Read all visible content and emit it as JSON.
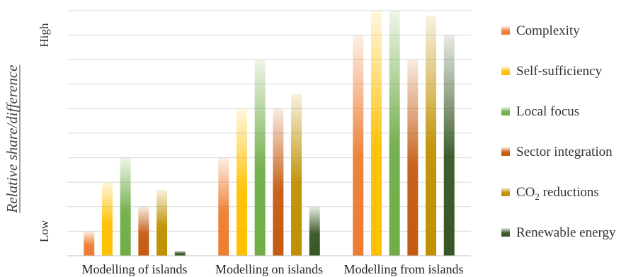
{
  "chart_data": {
    "type": "bar",
    "ylabel": "Relative share/difference",
    "ylim": [
      0,
      10
    ],
    "y_ticks": [
      {
        "value": 1,
        "label": "Low"
      },
      {
        "value": 9,
        "label": "High"
      }
    ],
    "grid": true,
    "legend_position": "right",
    "categories": [
      "Modelling of islands",
      "Modelling on islands",
      "Modelling from islands"
    ],
    "series": [
      {
        "name": "Complexity",
        "color": "#ED7D31",
        "values": [
          1.0,
          4.0,
          9.0
        ]
      },
      {
        "name": "Self-sufficiency",
        "color": "#FFC000",
        "values": [
          3.0,
          6.0,
          10.0
        ]
      },
      {
        "name": "Local focus",
        "color": "#70AD47",
        "values": [
          4.0,
          8.0,
          10.0
        ]
      },
      {
        "name": "Sector integration",
        "color": "#C55A11",
        "values": [
          2.0,
          6.0,
          8.0
        ]
      },
      {
        "name": "CO2 reductions",
        "color": "#BF9000",
        "name_base": "CO",
        "name_sub": "2",
        "name_rest": " reductions",
        "values": [
          2.7,
          6.6,
          9.8
        ]
      },
      {
        "name": "Renewable energy",
        "color": "#375623",
        "values": [
          0.2,
          2.0,
          9.0
        ]
      }
    ]
  }
}
